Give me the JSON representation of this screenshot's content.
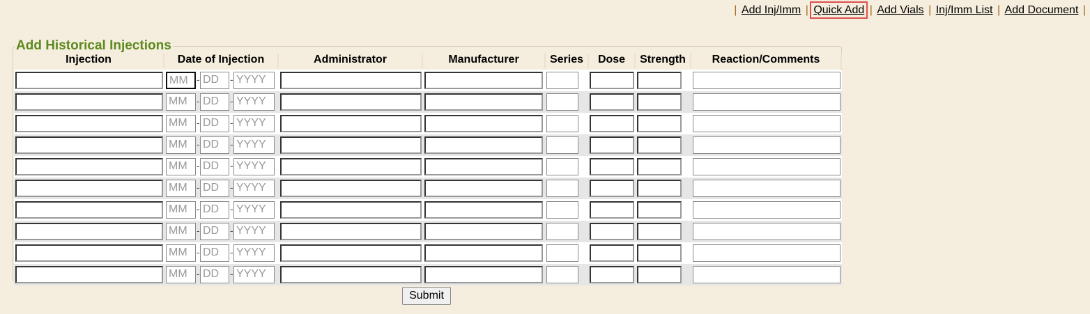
{
  "nav": {
    "links": [
      "Add Inj/Imm",
      "Quick Add",
      "Add Vials",
      "Inj/Imm List",
      "Add Document"
    ],
    "highlighted": "Quick Add"
  },
  "form": {
    "title": "Add Historical Injections",
    "columns": [
      "Injection",
      "Date of Injection",
      "Administrator",
      "Manufacturer",
      "Series",
      "Dose",
      "Strength",
      "Reaction/Comments"
    ],
    "placeholders": {
      "month": "MM",
      "day": "DD",
      "year": "YYYY"
    },
    "row_count": 10,
    "submit_label": "Submit"
  }
}
